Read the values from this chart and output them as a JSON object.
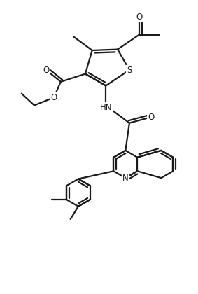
{
  "bg_color": "#ffffff",
  "line_color": "#1a1a1a",
  "bond_width": 1.6,
  "figsize": [
    2.83,
    4.2
  ],
  "dpi": 100,
  "xlim": [
    0,
    10
  ],
  "ylim": [
    0,
    14.85
  ]
}
